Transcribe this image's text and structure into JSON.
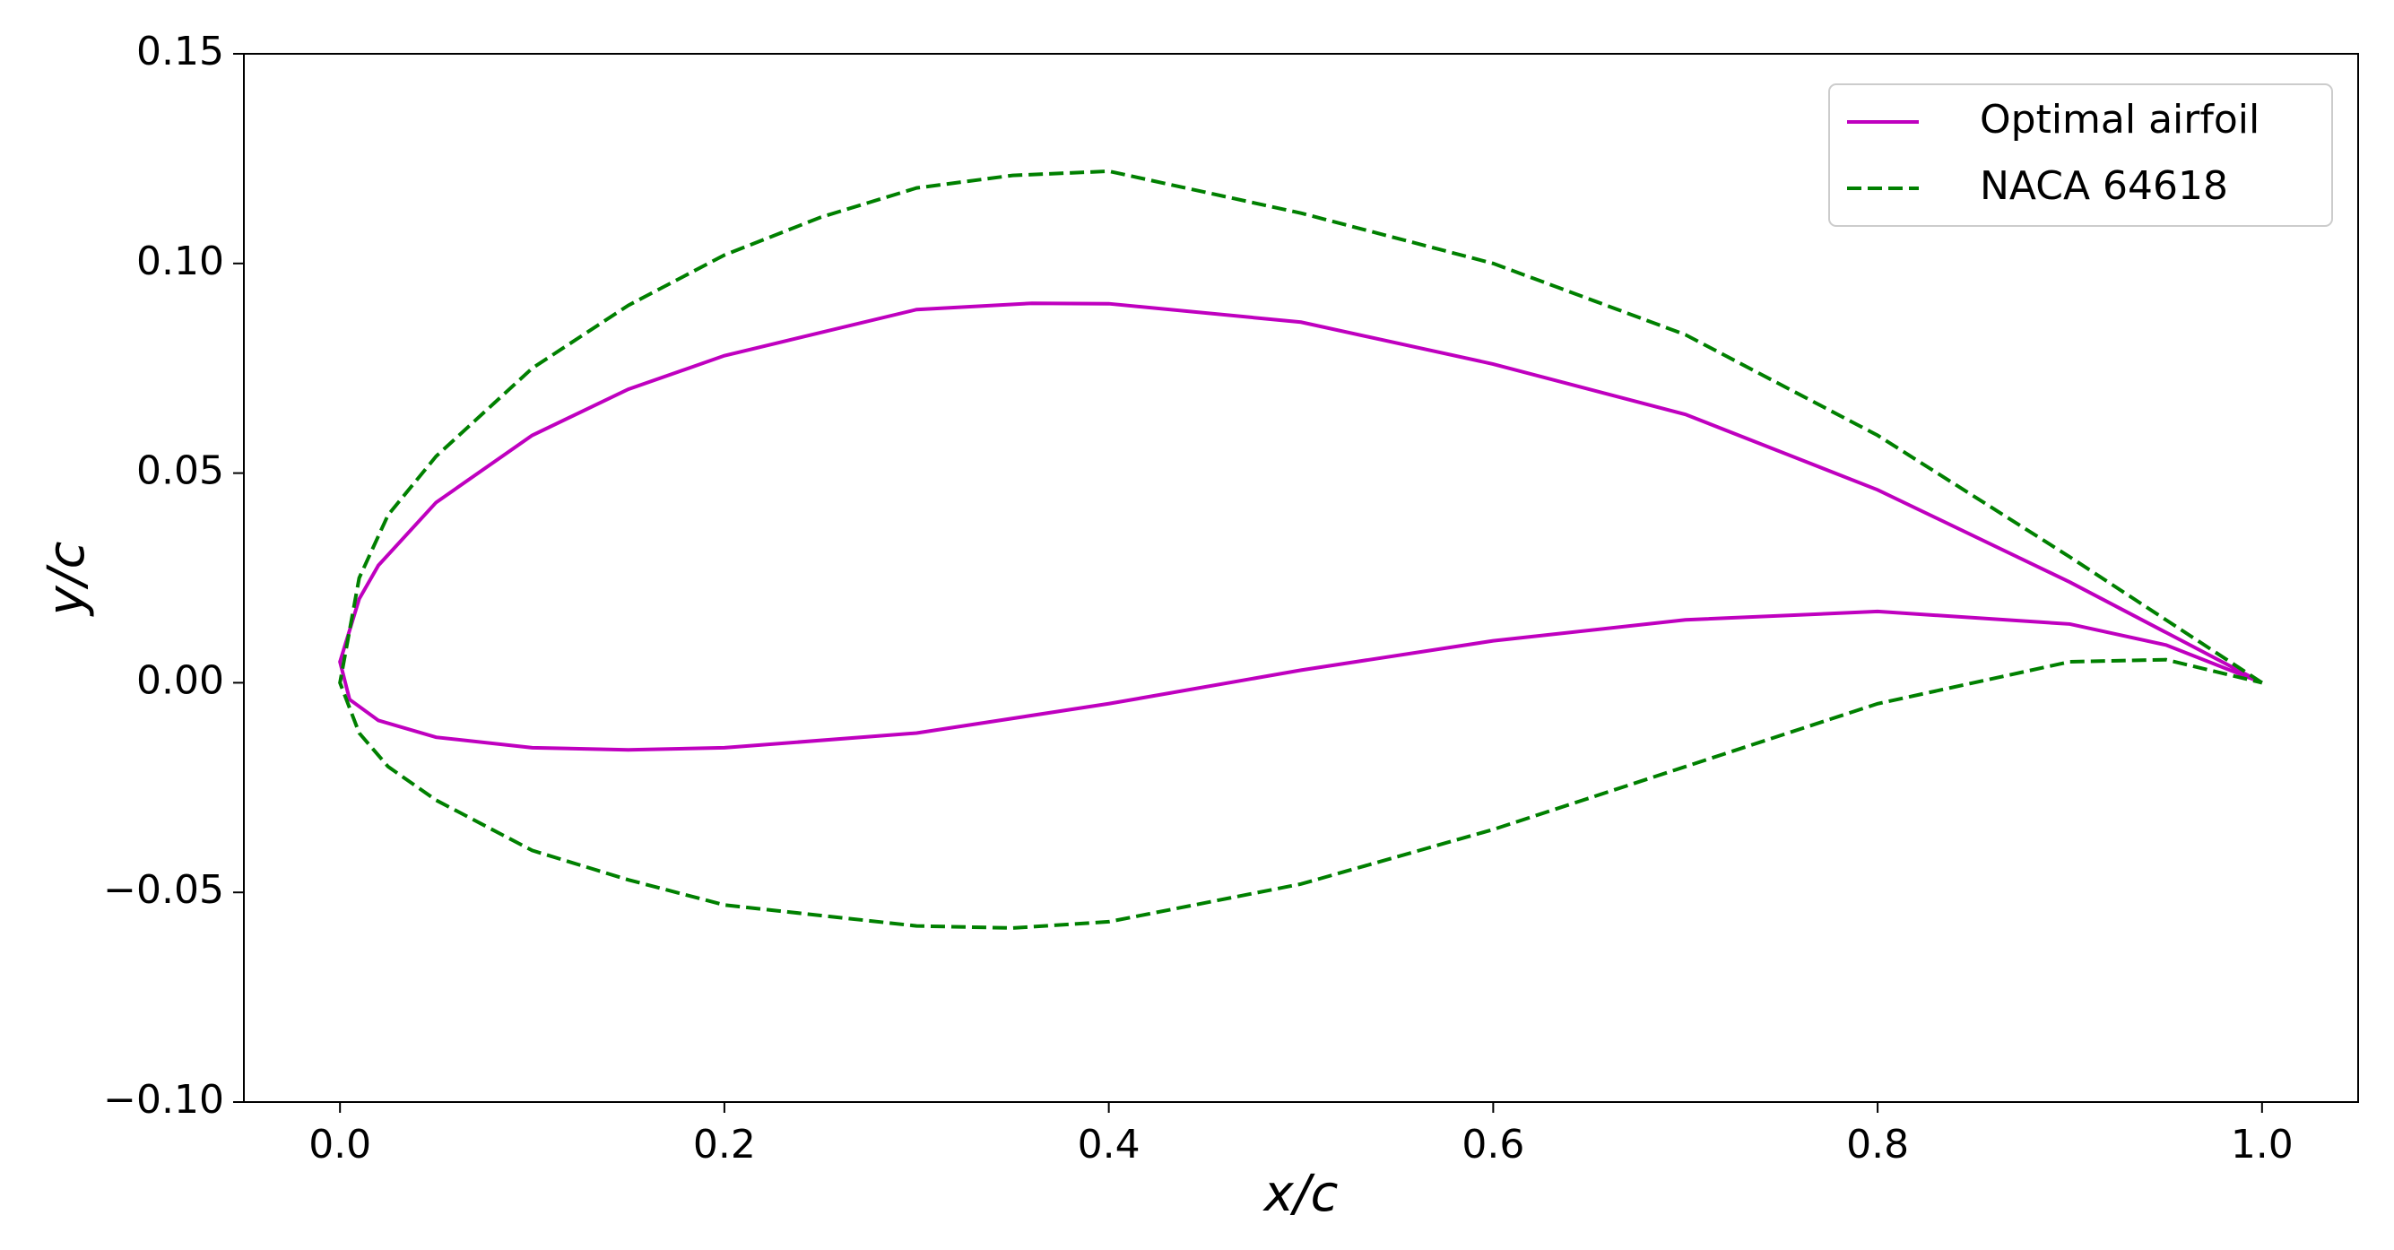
{
  "chart_data": {
    "type": "line",
    "x_label": "x/c",
    "y_label": "y/c",
    "xlim": [
      -0.05,
      1.05
    ],
    "ylim": [
      -0.1,
      0.15
    ],
    "xticks": [
      {
        "value": 0,
        "label": "0.0"
      },
      {
        "value": 0.2,
        "label": "0.2"
      },
      {
        "value": 0.4,
        "label": "0.4"
      },
      {
        "value": 0.6,
        "label": "0.6"
      },
      {
        "value": 0.8,
        "label": "0.8"
      },
      {
        "value": 1,
        "label": "1.0"
      }
    ],
    "yticks": [
      {
        "value": -0.1,
        "label": "−0.10"
      },
      {
        "value": -0.05,
        "label": "−0.05"
      },
      {
        "value": 0,
        "label": "0.00"
      },
      {
        "value": 0.05,
        "label": "0.05"
      },
      {
        "value": 0.1,
        "label": "0.10"
      },
      0.15
    ],
    "grid": false,
    "legend": "upper right",
    "series": [
      {
        "name": "Optimal airfoil",
        "color": "#bf00bf",
        "linestyle": "solid",
        "x": [
          1.0,
          0.95,
          0.9,
          0.8,
          0.7,
          0.6,
          0.5,
          0.4,
          0.36,
          0.3,
          0.2,
          0.15,
          0.1,
          0.05,
          0.02,
          0.01,
          0.0,
          0.005,
          0.02,
          0.05,
          0.1,
          0.15,
          0.2,
          0.3,
          0.4,
          0.5,
          0.6,
          0.7,
          0.8,
          0.9,
          0.95,
          1.0
        ],
        "values": [
          0.0,
          0.012,
          0.024,
          0.046,
          0.064,
          0.076,
          0.086,
          0.0904,
          0.0905,
          0.089,
          0.078,
          0.07,
          0.059,
          0.043,
          0.028,
          0.02,
          0.005,
          -0.004,
          -0.009,
          -0.013,
          -0.0155,
          -0.016,
          -0.0155,
          -0.012,
          -0.005,
          0.003,
          0.01,
          0.015,
          0.017,
          0.014,
          0.009,
          0.0
        ]
      },
      {
        "name": "NACA 64618",
        "color": "#008000",
        "linestyle": "dashed",
        "x": [
          1.0,
          0.95,
          0.9,
          0.8,
          0.7,
          0.6,
          0.5,
          0.4,
          0.35,
          0.3,
          0.25,
          0.2,
          0.15,
          0.1,
          0.05,
          0.025,
          0.01,
          0.0,
          0.01,
          0.025,
          0.05,
          0.1,
          0.15,
          0.2,
          0.3,
          0.35,
          0.4,
          0.5,
          0.6,
          0.7,
          0.8,
          0.9,
          0.95,
          1.0
        ],
        "values": [
          0.0,
          0.015,
          0.03,
          0.059,
          0.083,
          0.1,
          0.112,
          0.122,
          0.121,
          0.118,
          0.111,
          0.102,
          0.09,
          0.075,
          0.054,
          0.04,
          0.025,
          0.0,
          -0.012,
          -0.02,
          -0.028,
          -0.04,
          -0.047,
          -0.053,
          -0.058,
          -0.0585,
          -0.057,
          -0.048,
          -0.035,
          -0.02,
          -0.005,
          0.005,
          0.0055,
          0.0
        ]
      }
    ]
  }
}
